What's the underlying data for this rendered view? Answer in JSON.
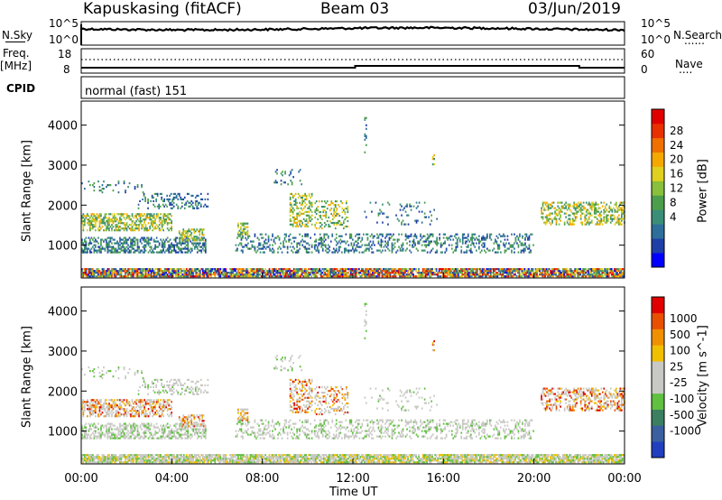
{
  "header": {
    "station": "Kapuskasing (fitACF)",
    "beam": "Beam 03",
    "date": "03/Jun/2019"
  },
  "side_labels": {
    "nsky": "N.Sky",
    "nsearch": "N.Search",
    "freq": "Freq.",
    "mhz": "[MHz]",
    "nave": "Nave",
    "cpid": "CPID",
    "dots": "......",
    "dots_short": "...."
  },
  "noise_panel": {
    "left_ticks": [
      "10^5",
      "10^0"
    ],
    "right_ticks": [
      "10^5",
      "10^0"
    ]
  },
  "freq_panel": {
    "left_ticks": [
      "18",
      "8"
    ],
    "right_ticks": [
      "60",
      "0"
    ]
  },
  "cpid_text": "normal (fast) 151",
  "chart_data": [
    {
      "type": "heatmap",
      "name": "power",
      "ylabel": "Slant Range [km]",
      "y_ticks": [
        "4000",
        "3000",
        "2000",
        "1000"
      ],
      "y_tick_values": [
        4000,
        3000,
        2000,
        1000
      ],
      "ylim": [
        180,
        4600
      ],
      "xlim": [
        0,
        24
      ],
      "colorbar_label": "Power [dB]",
      "colorbar_ticks": [
        "28",
        "24",
        "20",
        "16",
        "12",
        "8",
        "4"
      ],
      "colorbar_colors": [
        "#0000ff",
        "#1f3fa8",
        "#2d6f9a",
        "#3a8e78",
        "#4c9e4c",
        "#88bf3c",
        "#e0d020",
        "#f5a800",
        "#f07000",
        "#e83000",
        "#e00000"
      ]
    },
    {
      "type": "heatmap",
      "name": "velocity",
      "ylabel": "Slant Range [km]",
      "xlabel": "Time UT",
      "x_ticks": [
        "00:00",
        "04:00",
        "08:00",
        "12:00",
        "16:00",
        "20:00",
        "00:00"
      ],
      "y_ticks": [
        "4000",
        "3000",
        "2000",
        "1000"
      ],
      "y_tick_values": [
        4000,
        3000,
        2000,
        1000
      ],
      "ylim": [
        180,
        4600
      ],
      "xlim": [
        0,
        24
      ],
      "colorbar_label": "Velocity [m s^-1]",
      "colorbar_ticks": [
        "1000",
        "500",
        "100",
        "25",
        "-25",
        "-100",
        "-500",
        "-1000"
      ],
      "colorbar_colors": [
        "#2040c0",
        "#3a60a0",
        "#3a8060",
        "#60c040",
        "#c8c8c4",
        "#c8c8c4",
        "#f0c000",
        "#f09000",
        "#e85000",
        "#e00000"
      ]
    }
  ]
}
